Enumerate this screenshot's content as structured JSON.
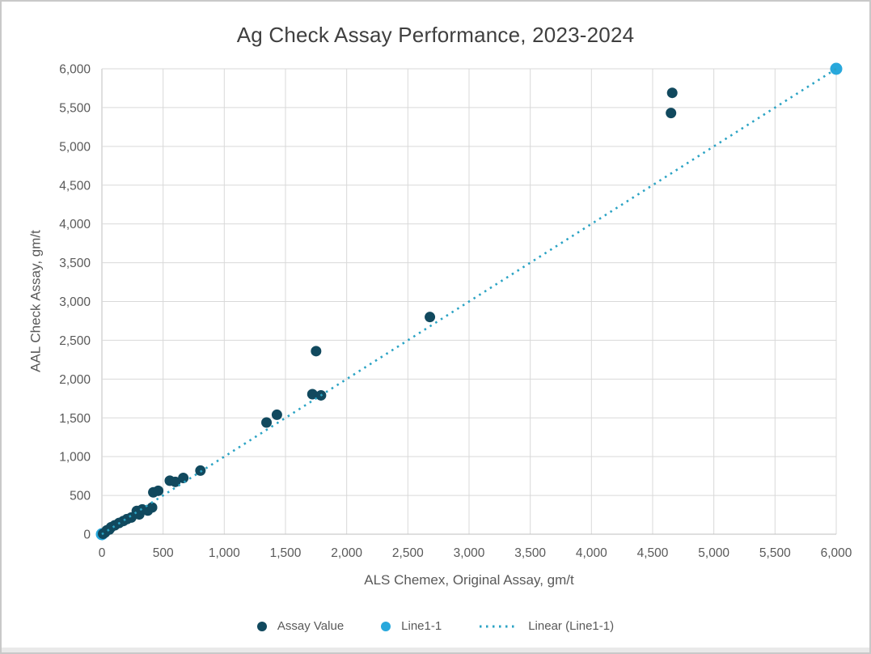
{
  "window": {
    "background": "#ffffff",
    "border_color": "#c9c9c9"
  },
  "chart": {
    "title": "Ag Check Assay Performance, 2023-2024",
    "x_axis_title": "ALS Chemex, Original Assay, gm/t",
    "y_axis_title": "AAL Check Assay, gm/t"
  },
  "legend": {
    "items": [
      {
        "label": "Assay Value",
        "marker": "circle",
        "color": "#11495e"
      },
      {
        "label": "Line1-1",
        "marker": "circle",
        "color": "#28a8dc"
      },
      {
        "label": "Linear (Line1-1)",
        "marker": "dotted-line",
        "color": "#2ba3c4"
      }
    ]
  },
  "chart_data": {
    "type": "scatter",
    "title": "Ag Check Assay Performance, 2023-2024",
    "xlabel": "ALS Chemex, Original Assay, gm/t",
    "ylabel": "AAL Check Assay, gm/t",
    "xlim": [
      0,
      6000
    ],
    "ylim": [
      0,
      6000
    ],
    "tick_step": 500,
    "xticks": [
      "0",
      "500",
      "1,000",
      "1,500",
      "2,000",
      "2,500",
      "3,000",
      "3,500",
      "4,000",
      "4,500",
      "5,000",
      "5,500",
      "6,000"
    ],
    "yticks": [
      "0",
      "500",
      "1,000",
      "1,500",
      "2,000",
      "2,500",
      "3,000",
      "3,500",
      "4,000",
      "4,500",
      "5,000",
      "5,500",
      "6,000"
    ],
    "grid": true,
    "grid_color": "#d9d9d9",
    "axis_line_color": "#bfbfbf",
    "tick_label_color": "#595959",
    "legend_position": "bottom",
    "series": [
      {
        "name": "Line1-1",
        "color": "#28a8dc",
        "marker_radius": 7.5,
        "points": [
          [
            0,
            0
          ],
          [
            6000,
            6000
          ]
        ]
      },
      {
        "name": "Assay Value",
        "color": "#11495e",
        "marker_radius": 6.5,
        "points": [
          [
            10,
            5
          ],
          [
            25,
            20
          ],
          [
            40,
            50
          ],
          [
            60,
            60
          ],
          [
            75,
            90
          ],
          [
            105,
            115
          ],
          [
            140,
            145
          ],
          [
            175,
            170
          ],
          [
            205,
            195
          ],
          [
            240,
            215
          ],
          [
            285,
            300
          ],
          [
            305,
            255
          ],
          [
            330,
            320
          ],
          [
            375,
            305
          ],
          [
            410,
            345
          ],
          [
            420,
            540
          ],
          [
            460,
            560
          ],
          [
            555,
            690
          ],
          [
            600,
            675
          ],
          [
            665,
            725
          ],
          [
            805,
            820
          ],
          [
            1345,
            1440
          ],
          [
            1430,
            1540
          ],
          [
            1720,
            1805
          ],
          [
            1750,
            2360
          ],
          [
            1790,
            1790
          ],
          [
            2680,
            2800
          ],
          [
            4650,
            5430
          ],
          [
            4660,
            5690
          ]
        ]
      }
    ],
    "trendline": {
      "name": "Linear (Line1-1)",
      "color": "#2ba3c4",
      "style": "dotted",
      "from": [
        0,
        0
      ],
      "to": [
        6000,
        6000
      ]
    }
  }
}
